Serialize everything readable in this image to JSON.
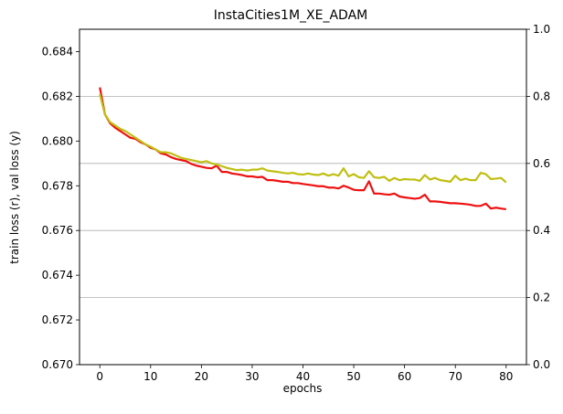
{
  "chart_data": {
    "type": "line",
    "title": "InstaCities1M_XE_ADAM",
    "xlabel": "epochs",
    "ylabel": "train loss (r), val loss (y)",
    "xlim": [
      -4,
      84
    ],
    "ylim": [
      0.67,
      0.685
    ],
    "x_ticks": [
      0,
      10,
      20,
      30,
      40,
      50,
      60,
      70,
      80
    ],
    "y_ticks": [
      0.67,
      0.672,
      0.674,
      0.676,
      0.678,
      0.68,
      0.682,
      0.684
    ],
    "y_tick_labels": [
      "0.670",
      "0.672",
      "0.674",
      "0.676",
      "0.678",
      "0.680",
      "0.682",
      "0.684"
    ],
    "y2lim": [
      0.0,
      1.0
    ],
    "y2_ticks": [
      0.0,
      0.2,
      0.4,
      0.6,
      0.8,
      1.0
    ],
    "y2_tick_labels": [
      "0.0",
      "0.2",
      "0.4",
      "0.6",
      "0.8",
      "1.0"
    ],
    "grid": "horizontal lines at right-axis ticks",
    "series": [
      {
        "color": "#ee1111",
        "x": [
          0,
          1,
          2,
          3,
          4,
          5,
          6,
          7,
          8,
          9,
          10,
          11,
          12,
          13,
          14,
          15,
          16,
          17,
          18,
          19,
          20,
          21,
          22,
          23,
          24,
          25,
          26,
          27,
          28,
          29,
          30,
          31,
          32,
          33,
          34,
          35,
          36,
          37,
          38,
          39,
          40,
          41,
          42,
          43,
          44,
          45,
          46,
          47,
          48,
          49,
          50,
          51,
          52,
          53,
          54,
          55,
          56,
          57,
          58,
          59,
          60,
          61,
          62,
          63,
          64,
          65,
          66,
          67,
          68,
          69,
          70,
          71,
          72,
          73,
          74,
          75,
          76,
          77,
          78,
          79,
          80
        ],
        "values": [
          0.6824,
          0.6812,
          0.6808,
          0.6806,
          0.68045,
          0.6803,
          0.68015,
          0.6801,
          0.67995,
          0.67985,
          0.6797,
          0.67962,
          0.67945,
          0.6794,
          0.67928,
          0.6792,
          0.67915,
          0.6791,
          0.67898,
          0.6789,
          0.67885,
          0.6788,
          0.67878,
          0.6789,
          0.67862,
          0.67862,
          0.67855,
          0.67852,
          0.67848,
          0.67842,
          0.67842,
          0.67838,
          0.6784,
          0.67825,
          0.67825,
          0.67822,
          0.67818,
          0.67818,
          0.67812,
          0.67812,
          0.67808,
          0.67805,
          0.67802,
          0.67798,
          0.67798,
          0.67792,
          0.67792,
          0.67788,
          0.678,
          0.67792,
          0.67782,
          0.6778,
          0.6778,
          0.6782,
          0.67765,
          0.67765,
          0.67762,
          0.6776,
          0.67765,
          0.67752,
          0.67748,
          0.67745,
          0.67742,
          0.67745,
          0.6776,
          0.6773,
          0.6773,
          0.67728,
          0.67725,
          0.67722,
          0.67722,
          0.6772,
          0.67718,
          0.67715,
          0.6771,
          0.6771,
          0.6772,
          0.67698,
          0.67702,
          0.67698,
          0.67695
        ]
      },
      {
        "color": "#bfbf11",
        "x": [
          0,
          1,
          2,
          3,
          4,
          5,
          6,
          7,
          8,
          9,
          10,
          11,
          12,
          13,
          14,
          15,
          16,
          17,
          18,
          19,
          20,
          21,
          22,
          23,
          24,
          25,
          26,
          27,
          28,
          29,
          30,
          31,
          32,
          33,
          34,
          35,
          36,
          37,
          38,
          39,
          40,
          41,
          42,
          43,
          44,
          45,
          46,
          47,
          48,
          49,
          50,
          51,
          52,
          53,
          54,
          55,
          56,
          57,
          58,
          59,
          60,
          61,
          62,
          63,
          64,
          65,
          66,
          67,
          68,
          69,
          70,
          71,
          72,
          73,
          74,
          75,
          76,
          77,
          78,
          79,
          80
        ],
        "values": [
          0.6821,
          0.6812,
          0.68085,
          0.6807,
          0.68055,
          0.68045,
          0.6803,
          0.68015,
          0.68,
          0.67985,
          0.67975,
          0.67962,
          0.6795,
          0.6795,
          0.67945,
          0.67935,
          0.67925,
          0.6792,
          0.67915,
          0.6791,
          0.67905,
          0.6791,
          0.679,
          0.67895,
          0.67888,
          0.6788,
          0.67875,
          0.6787,
          0.67872,
          0.67868,
          0.67872,
          0.67872,
          0.67878,
          0.67868,
          0.67865,
          0.67862,
          0.67858,
          0.67855,
          0.67858,
          0.67852,
          0.6785,
          0.67855,
          0.6785,
          0.67848,
          0.67855,
          0.67845,
          0.67852,
          0.67845,
          0.67878,
          0.67842,
          0.67852,
          0.67838,
          0.67835,
          0.67865,
          0.67838,
          0.67835,
          0.6784,
          0.67822,
          0.67835,
          0.67825,
          0.6783,
          0.67828,
          0.67828,
          0.67822,
          0.67848,
          0.67828,
          0.67835,
          0.67825,
          0.67822,
          0.67818,
          0.67845,
          0.67825,
          0.67832,
          0.67825,
          0.67825,
          0.67858,
          0.67852,
          0.6783,
          0.67832,
          0.67835,
          0.67815
        ]
      }
    ]
  }
}
